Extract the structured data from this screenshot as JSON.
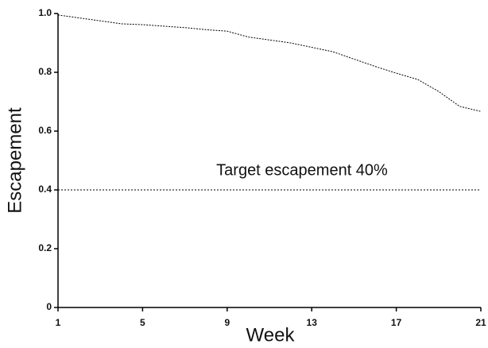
{
  "chart_data": {
    "type": "line",
    "x_label": "Week",
    "y_label": "Escapement",
    "x": [
      1,
      2,
      3,
      4,
      5,
      6,
      7,
      8,
      9,
      10,
      11,
      12,
      13,
      14,
      15,
      16,
      17,
      18,
      19,
      20,
      21
    ],
    "series": [
      {
        "color": "#000000",
        "values": [
          0.995,
          0.985,
          0.975,
          0.965,
          0.962,
          0.957,
          0.952,
          0.945,
          0.94,
          0.92,
          0.91,
          0.9,
          0.885,
          0.87,
          0.845,
          0.82,
          0.797,
          0.776,
          0.735,
          0.684,
          0.667
        ]
      }
    ],
    "reference_line": {
      "value": 0.4,
      "label": "Target escapement 40%"
    },
    "xlim": [
      1,
      21
    ],
    "xticks": [
      1,
      5,
      9,
      13,
      17,
      21
    ],
    "ylim": [
      0,
      1
    ],
    "yticks": [
      0,
      0.2,
      0.4,
      0.6,
      0.8,
      {
        "value": 1,
        "label": "1.0"
      }
    ]
  }
}
